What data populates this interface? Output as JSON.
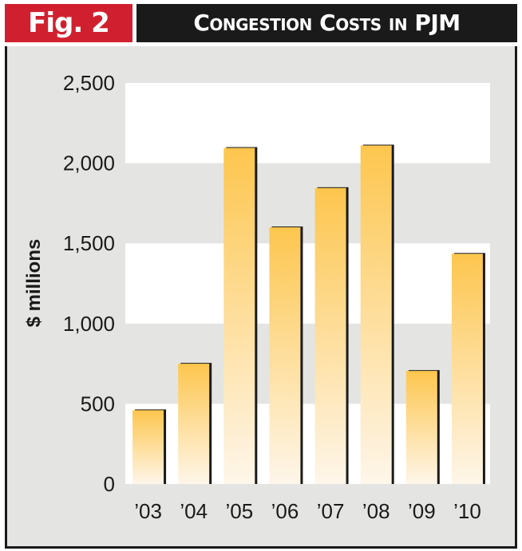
{
  "header": {
    "fig_label": "Fig. 2",
    "title": "Congestion Costs in PJM"
  },
  "colors": {
    "label_red": "#d0202f",
    "title_black": "#1a1a1a",
    "panel_gray": "#e4e5e2",
    "band_white": "#ffffff",
    "bar_top": "#fdc64e",
    "bar_bottom": "#fef6ea",
    "bar_shadow": "#1a1a1a"
  },
  "chart_data": {
    "type": "bar",
    "title": "Congestion Costs in PJM",
    "xlabel": "",
    "ylabel": "$ millions",
    "categories": [
      "’03",
      "’04",
      "’05",
      "’06",
      "’07",
      "’08",
      "’09",
      "’10"
    ],
    "values": [
      460,
      750,
      2095,
      1600,
      1845,
      2110,
      705,
      1435
    ],
    "ylim": [
      0,
      2500
    ],
    "yticks": [
      0,
      500,
      1000,
      1500,
      2000,
      2500
    ],
    "ytick_labels": [
      "0",
      "500",
      "1,000",
      "1,500",
      "2,000",
      "2,500"
    ],
    "grid": "alternating horizontal bands"
  }
}
